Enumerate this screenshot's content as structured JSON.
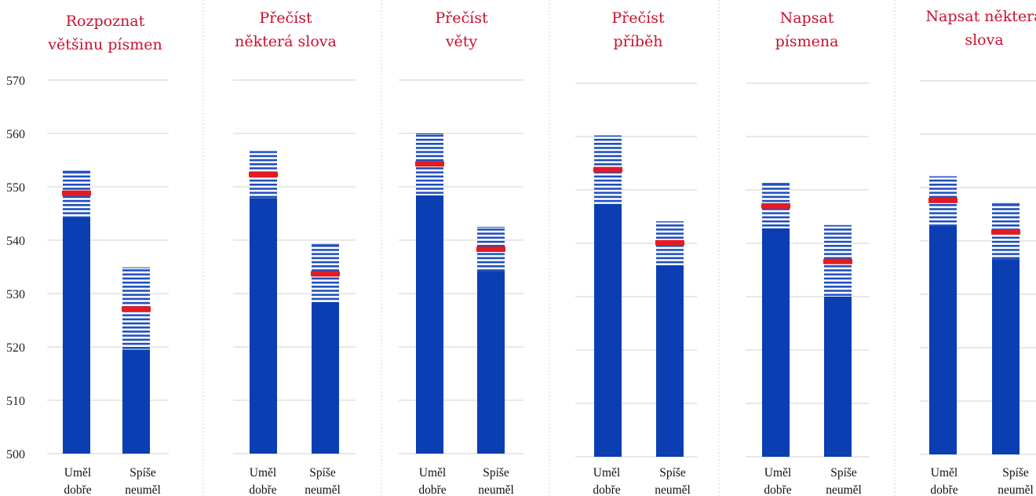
{
  "colors": {
    "bar": "#0a3eb2",
    "stripe": "#1f4fbd",
    "marker": "#e31b23",
    "title": "#c8102e",
    "grid": "#d9d9d9"
  },
  "chart_data": {
    "type": "bar",
    "y_ticks": [
      "500",
      "510",
      "520",
      "530",
      "540",
      "550",
      "560",
      "570"
    ],
    "ylim": [
      500,
      570
    ],
    "grid": true,
    "categories": [
      [
        "Uměl",
        "dobře"
      ],
      [
        "Spíše",
        "neuměl"
      ]
    ],
    "panels": [
      {
        "title": [
          "Rozpoznat",
          "většinu písmen"
        ],
        "bars": [
          {
            "value": 544.3,
            "low": 544.3,
            "high": 553.0,
            "marker": 548.8
          },
          {
            "value": 519.5,
            "low": 519.5,
            "high": 534.9,
            "marker": 527.1
          }
        ]
      },
      {
        "title": [
          "Přečíst",
          "některá slova"
        ],
        "bars": [
          {
            "value": 547.9,
            "low": 547.9,
            "high": 556.7,
            "marker": 552.3
          },
          {
            "value": 528.4,
            "low": 528.4,
            "high": 539.3,
            "marker": 533.7
          }
        ]
      },
      {
        "title": [
          "Přečíst",
          "věty"
        ],
        "bars": [
          {
            "value": 548.4,
            "low": 548.4,
            "high": 560.0,
            "marker": 554.3
          },
          {
            "value": 534.2,
            "low": 534.2,
            "high": 542.5,
            "marker": 538.3
          }
        ]
      },
      {
        "title": [
          "Přečíst",
          "příběh"
        ],
        "bars": [
          {
            "value": 547.4,
            "low": 547.4,
            "high": 560.2,
            "marker": 553.8
          },
          {
            "value": 535.9,
            "low": 535.9,
            "high": 544.1,
            "marker": 540.1
          }
        ]
      },
      {
        "title": [
          "Napsat",
          "písmena"
        ],
        "bars": [
          {
            "value": 542.8,
            "low": 542.8,
            "high": 551.3,
            "marker": 547.0
          },
          {
            "value": 530.0,
            "low": 530.0,
            "high": 543.4,
            "marker": 536.6
          }
        ]
      },
      {
        "title": [
          "Napsat některá",
          "slova"
        ],
        "bars": [
          {
            "value": 542.8,
            "low": 542.8,
            "high": 552.1,
            "marker": 547.6
          },
          {
            "value": 536.6,
            "low": 536.6,
            "high": 547.1,
            "marker": 541.7
          }
        ]
      }
    ]
  }
}
